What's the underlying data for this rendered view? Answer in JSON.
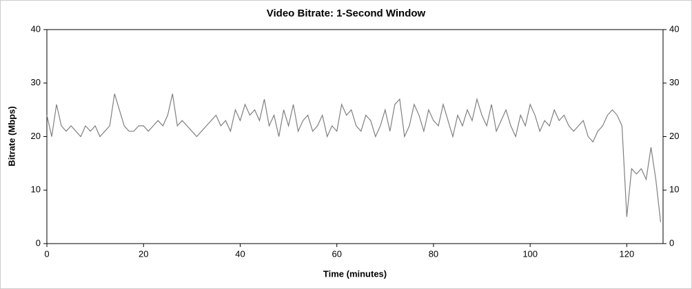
{
  "chart_data": {
    "type": "line",
    "title": "Video Bitrate: 1-Second Window",
    "xlabel": "Time (minutes)",
    "ylabel": "Bitrate (Mbps)",
    "xlim": [
      0,
      127.5
    ],
    "xticks": [
      0,
      20,
      40,
      60,
      80,
      100,
      120
    ],
    "ylim": [
      0,
      40
    ],
    "yticks": [
      0,
      10,
      20,
      30,
      40
    ],
    "y2lim": [
      0,
      40
    ],
    "y2ticks": [
      0,
      10,
      20,
      30,
      40
    ],
    "x": [
      0,
      1,
      2,
      3,
      4,
      5,
      6,
      7,
      8,
      9,
      10,
      11,
      12,
      13,
      14,
      15,
      16,
      17,
      18,
      19,
      20,
      21,
      22,
      23,
      24,
      25,
      26,
      27,
      28,
      29,
      30,
      31,
      32,
      33,
      34,
      35,
      36,
      37,
      38,
      39,
      40,
      41,
      42,
      43,
      44,
      45,
      46,
      47,
      48,
      49,
      50,
      51,
      52,
      53,
      54,
      55,
      56,
      57,
      58,
      59,
      60,
      61,
      62,
      63,
      64,
      65,
      66,
      67,
      68,
      69,
      70,
      71,
      72,
      73,
      74,
      75,
      76,
      77,
      78,
      79,
      80,
      81,
      82,
      83,
      84,
      85,
      86,
      87,
      88,
      89,
      90,
      91,
      92,
      93,
      94,
      95,
      96,
      97,
      98,
      99,
      100,
      101,
      102,
      103,
      104,
      105,
      106,
      107,
      108,
      109,
      110,
      111,
      112,
      113,
      114,
      115,
      116,
      117,
      118,
      119,
      120,
      121,
      122,
      123,
      124,
      125,
      126,
      127
    ],
    "series": [
      {
        "color": "#7f7f7f",
        "values": [
          24,
          20,
          26,
          22,
          21,
          22,
          21,
          20,
          22,
          21,
          22,
          20,
          21,
          22,
          28,
          25,
          22,
          21,
          21,
          22,
          22,
          21,
          22,
          23,
          22,
          24,
          28,
          22,
          23,
          22,
          21,
          20,
          21,
          22,
          23,
          24,
          22,
          23,
          21,
          25,
          23,
          26,
          24,
          25,
          23,
          27,
          22,
          24,
          20,
          25,
          22,
          26,
          21,
          23,
          24,
          21,
          22,
          24,
          20,
          22,
          21,
          26,
          24,
          25,
          22,
          21,
          24,
          23,
          20,
          22,
          25,
          21,
          26,
          27,
          20,
          22,
          26,
          24,
          21,
          25,
          23,
          22,
          26,
          23,
          20,
          24,
          22,
          25,
          23,
          27,
          24,
          22,
          26,
          21,
          23,
          25,
          22,
          20,
          24,
          22,
          26,
          24,
          21,
          23,
          22,
          25,
          23,
          24,
          22,
          21,
          22,
          23,
          20,
          19,
          21,
          22,
          24,
          25,
          24,
          22,
          5,
          14,
          13,
          14,
          12,
          18,
          12,
          4
        ]
      }
    ]
  }
}
